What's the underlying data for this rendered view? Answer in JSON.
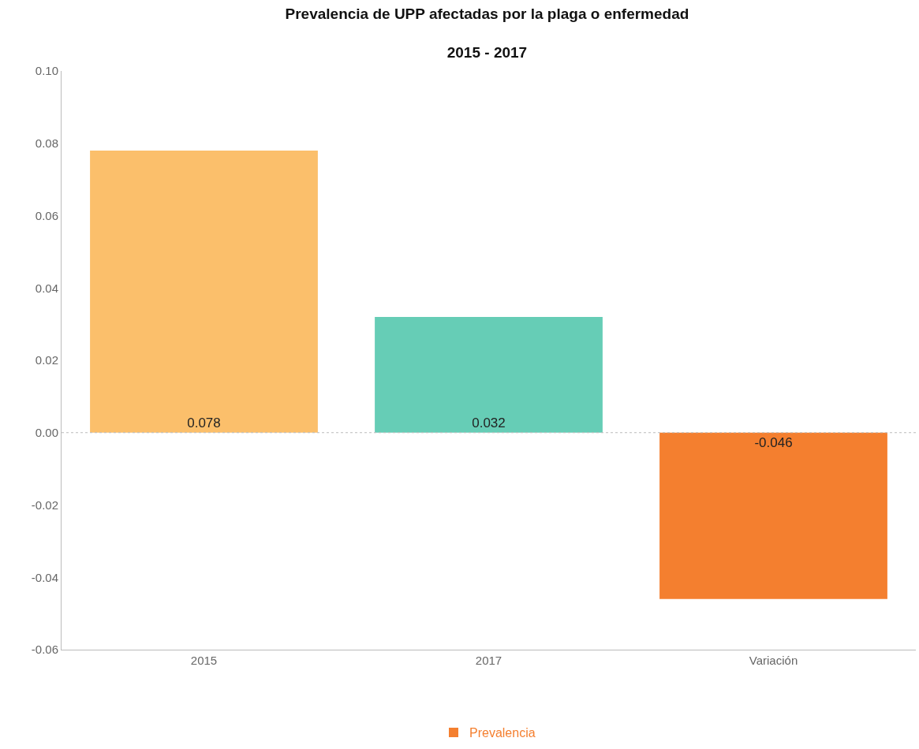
{
  "chart_data": {
    "type": "bar",
    "title": "Prevalencia de UPP afectadas por la plaga o enfermedad",
    "subtitle": "2015 - 2017",
    "categories": [
      "2015",
      "2017",
      "Variación"
    ],
    "series": [
      {
        "name": "Prevalencia",
        "color": "#f47f2f",
        "colors": [
          "#fbbf6b",
          "#66cdb6",
          "#f47f2f"
        ],
        "values": [
          0.078,
          0.032,
          -0.046
        ]
      }
    ],
    "ylim": [
      -0.06,
      0.1
    ],
    "yticks": [
      {
        "value": -0.06,
        "label": "-0.06"
      },
      {
        "value": -0.04,
        "label": "-0.04"
      },
      {
        "value": -0.02,
        "label": "-0.02"
      },
      {
        "value": 0,
        "label": "0.00"
      },
      {
        "value": 0.02,
        "label": "0.02"
      },
      {
        "value": 0.04,
        "label": "0.04"
      },
      {
        "value": 0.06,
        "label": "0.06"
      },
      {
        "value": 0.08,
        "label": "0.08"
      },
      {
        "value": 0.1,
        "label": "0.10"
      }
    ],
    "ref_lines": [
      {
        "axis": "y",
        "value": 0,
        "line_style": "dotted",
        "color": "#bbbbbb"
      }
    ],
    "data_labels": true,
    "grid": false,
    "legend": "bottom"
  }
}
